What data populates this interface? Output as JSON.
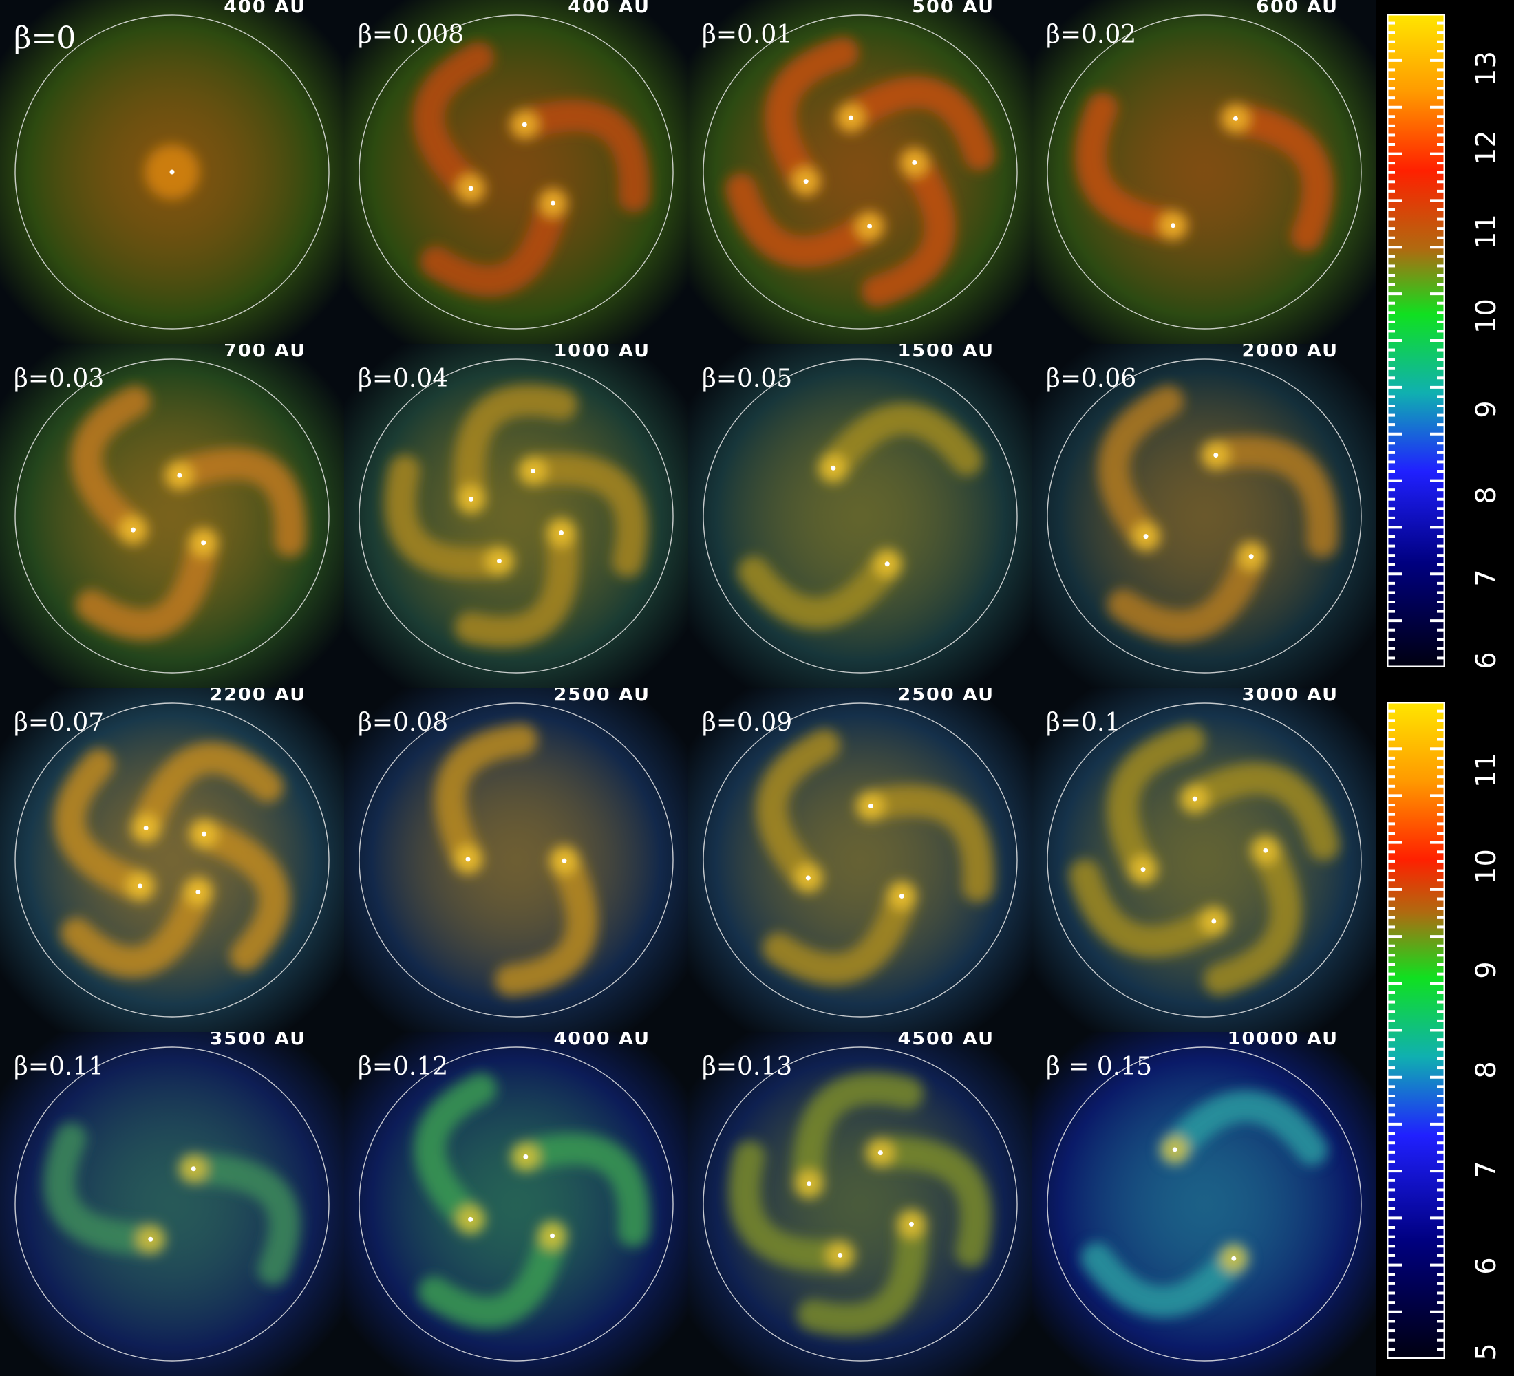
{
  "panels": [
    {
      "beta": "β=0",
      "scale": "400 AU",
      "bg": "#2d4a10",
      "tone": "#c45a10"
    },
    {
      "beta": "β=0.008",
      "scale": "400 AU",
      "bg": "#2c4a10",
      "tone": "#b84a10"
    },
    {
      "beta": "β=0.01",
      "scale": "500 AU",
      "bg": "#2c4a12",
      "tone": "#c25012"
    },
    {
      "beta": "β=0.02",
      "scale": "600 AU",
      "bg": "#2c4a12",
      "tone": "#c25012"
    },
    {
      "beta": "β=0.03",
      "scale": "700 AU",
      "bg": "#23451c",
      "tone": "#c07a1c"
    },
    {
      "beta": "β=0.04",
      "scale": "1000 AU",
      "bg": "#1b3c33",
      "tone": "#a8861e"
    },
    {
      "beta": "β=0.05",
      "scale": "1500 AU",
      "bg": "#17363a",
      "tone": "#a08a22"
    },
    {
      "beta": "β=0.06",
      "scale": "2000 AU",
      "bg": "#142f3a",
      "tone": "#b07a20"
    },
    {
      "beta": "β=0.07",
      "scale": "2200 AU",
      "bg": "#18384a",
      "tone": "#c08a22"
    },
    {
      "beta": "β=0.08",
      "scale": "2500 AU",
      "bg": "#12284a",
      "tone": "#b88a20"
    },
    {
      "beta": "β=0.09",
      "scale": "2500 AU",
      "bg": "#15304a",
      "tone": "#a88a22"
    },
    {
      "beta": "β=0.1",
      "scale": "3000 AU",
      "bg": "#15324a",
      "tone": "#a08a22"
    },
    {
      "beta": "β=0.11",
      "scale": "3500 AU",
      "bg": "#0e1e55",
      "tone": "#3c8a5a"
    },
    {
      "beta": "β=0.12",
      "scale": "4000 AU",
      "bg": "#0c1c58",
      "tone": "#3a9a52"
    },
    {
      "beta": "β=0.13",
      "scale": "4500 AU",
      "bg": "#0e2050",
      "tone": "#7a8a2a"
    },
    {
      "beta": "β = 0.15",
      "scale": "10000 AU",
      "bg": "#0a1a68",
      "tone": "#2a9aa0"
    }
  ],
  "colorbars": [
    {
      "labels": [
        "13",
        "12",
        "11",
        "10",
        "9",
        "8",
        "7",
        "6"
      ]
    },
    {
      "labels": [
        "11",
        "10",
        "9",
        "8",
        "7",
        "6",
        "5"
      ]
    }
  ]
}
